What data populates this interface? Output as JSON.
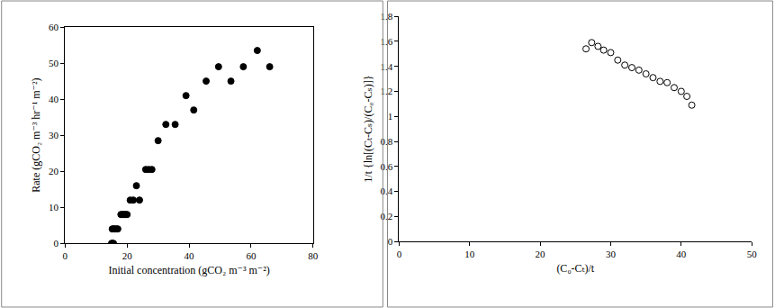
{
  "chart_data": [
    {
      "type": "scatter",
      "x_label": "Initial concentration (gCO₂ m⁻³ m⁻²)",
      "y_label": "Rate (gCO₂ m⁻³ hr⁻¹ m⁻²)",
      "x": [
        15,
        15.3,
        15.6,
        15.2,
        15.6,
        16,
        16.5,
        17,
        18,
        18.5,
        19,
        19.5,
        20,
        21,
        22,
        23,
        24,
        26,
        27,
        28,
        30,
        32.5,
        35.5,
        39,
        41.5,
        45.5,
        49.5,
        53.5,
        57.5,
        62,
        66
      ],
      "values": [
        0,
        0,
        0,
        4,
        4,
        4,
        4,
        4,
        8,
        8,
        8,
        8,
        8,
        12,
        12,
        16,
        12,
        20.5,
        20.5,
        20.5,
        28.5,
        33,
        33,
        41,
        37,
        45,
        49,
        45,
        49,
        53.5,
        49
      ],
      "color": "#000000",
      "marker": "filled",
      "xlim": [
        0,
        80
      ],
      "xticks": [
        0,
        20,
        40,
        60,
        80
      ],
      "ylim": [
        0,
        60
      ],
      "yticks": [
        0,
        10,
        20,
        30,
        40,
        50,
        60
      ],
      "grid": false
    },
    {
      "type": "scatter",
      "x_label": "(C₀-Cₜ)/t",
      "y_label": "1/t {ln[(Cₜ-Cₛ)/(C₀-Cₛ)]}",
      "x": [
        26.5,
        27.3,
        28.2,
        29,
        30,
        31,
        32,
        33,
        34,
        35,
        36,
        37,
        38,
        39,
        40,
        40.8,
        41.5
      ],
      "values": [
        1.54,
        1.59,
        1.56,
        1.53,
        1.51,
        1.45,
        1.41,
        1.39,
        1.37,
        1.34,
        1.31,
        1.28,
        1.27,
        1.23,
        1.2,
        1.16,
        1.09
      ],
      "color": "#000000",
      "marker": "open",
      "xlim": [
        0,
        50
      ],
      "xticks": [
        0,
        10,
        20,
        30,
        40,
        50
      ],
      "ylim": [
        0,
        1.8
      ],
      "yticks": [
        0,
        0.2,
        0.4,
        0.6,
        0.8,
        1,
        1.2,
        1.4,
        1.6,
        1.8
      ],
      "grid": false
    }
  ]
}
